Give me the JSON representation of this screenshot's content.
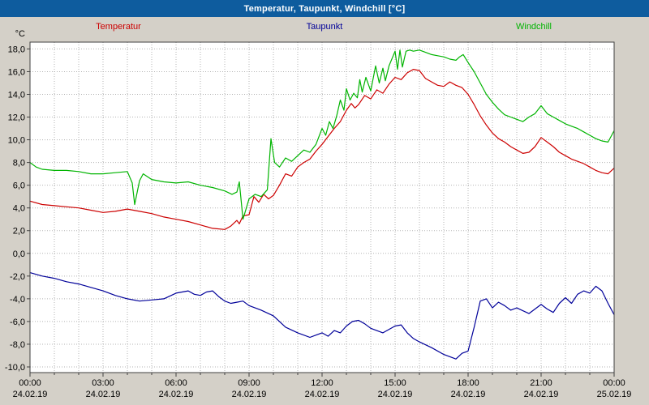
{
  "window": {
    "title": "Temperatur, Taupunkt, Windchill [°C]"
  },
  "colors": {
    "titlebar_bg": "#0e5c9e",
    "titlebar_text": "#ffffff",
    "page_bg": "#d4d0c8",
    "plot_bg": "#ffffff",
    "grid": "#b3b3b3",
    "axis_border": "#404040",
    "tick_text": "#000000",
    "temperatur": "#cc0000",
    "taupunkt": "#000099",
    "windchill": "#00b400"
  },
  "legend": [
    {
      "label": "Temperatur",
      "color": "#cc0000"
    },
    {
      "label": "Taupunkt",
      "color": "#000099"
    },
    {
      "label": "Windchill",
      "color": "#00b400"
    }
  ],
  "chart_data": {
    "type": "line",
    "title": "Temperatur, Taupunkt, Windchill [°C]",
    "xlabel": "",
    "ylabel": "°C",
    "ylim": [
      -10,
      18
    ],
    "grid": true,
    "legend_position": "top",
    "yticks": {
      "values": [
        18,
        16,
        14,
        12,
        10,
        8,
        6,
        4,
        2,
        0,
        -2,
        -4,
        -6,
        -8,
        -10
      ],
      "labels": [
        "18,0",
        "16,0",
        "14,0",
        "12,0",
        "10,0",
        "8,0",
        "6,0",
        "4,0",
        "2,0",
        "0,0",
        "-2,0",
        "-4,0",
        "-6,0",
        "-8,0",
        "-10,0"
      ]
    },
    "xticks": [
      {
        "time": "00:00",
        "date": "24.02.19",
        "hour": 0
      },
      {
        "time": "03:00",
        "date": "24.02.19",
        "hour": 3
      },
      {
        "time": "06:00",
        "date": "24.02.19",
        "hour": 6
      },
      {
        "time": "09:00",
        "date": "24.02.19",
        "hour": 9
      },
      {
        "time": "12:00",
        "date": "24.02.19",
        "hour": 12
      },
      {
        "time": "15:00",
        "date": "24.02.19",
        "hour": 15
      },
      {
        "time": "18:00",
        "date": "24.02.19",
        "hour": 18
      },
      {
        "time": "21:00",
        "date": "24.02.19",
        "hour": 21
      },
      {
        "time": "00:00",
        "date": "25.02.19",
        "hour": 24
      }
    ],
    "x_unit": "hours",
    "x_range": [
      0,
      24
    ],
    "series": [
      {
        "name": "Temperatur",
        "color": "#cc0000",
        "points": [
          [
            0,
            4.6
          ],
          [
            0.5,
            4.3
          ],
          [
            1,
            4.2
          ],
          [
            1.5,
            4.1
          ],
          [
            2,
            4.0
          ],
          [
            2.5,
            3.8
          ],
          [
            3,
            3.6
          ],
          [
            3.5,
            3.7
          ],
          [
            4,
            3.9
          ],
          [
            4.5,
            3.7
          ],
          [
            5,
            3.5
          ],
          [
            5.5,
            3.2
          ],
          [
            6,
            3.0
          ],
          [
            6.5,
            2.8
          ],
          [
            7,
            2.5
          ],
          [
            7.5,
            2.2
          ],
          [
            8,
            2.1
          ],
          [
            8.25,
            2.4
          ],
          [
            8.5,
            2.9
          ],
          [
            8.6,
            2.6
          ],
          [
            8.75,
            3.3
          ],
          [
            9,
            3.4
          ],
          [
            9.2,
            5.0
          ],
          [
            9.4,
            4.5
          ],
          [
            9.6,
            5.2
          ],
          [
            9.8,
            4.8
          ],
          [
            10,
            5.1
          ],
          [
            10.25,
            6.0
          ],
          [
            10.5,
            7.0
          ],
          [
            10.75,
            6.8
          ],
          [
            11,
            7.6
          ],
          [
            11.25,
            8.0
          ],
          [
            11.5,
            8.3
          ],
          [
            11.75,
            9.0
          ],
          [
            12,
            9.6
          ],
          [
            12.25,
            10.3
          ],
          [
            12.5,
            11.0
          ],
          [
            12.75,
            11.6
          ],
          [
            13,
            12.6
          ],
          [
            13.2,
            13.2
          ],
          [
            13.35,
            12.8
          ],
          [
            13.5,
            13.1
          ],
          [
            13.75,
            13.9
          ],
          [
            14,
            13.6
          ],
          [
            14.25,
            14.4
          ],
          [
            14.5,
            14.1
          ],
          [
            14.75,
            14.9
          ],
          [
            15,
            15.5
          ],
          [
            15.25,
            15.3
          ],
          [
            15.5,
            15.9
          ],
          [
            15.75,
            16.2
          ],
          [
            16,
            16.1
          ],
          [
            16.25,
            15.4
          ],
          [
            16.5,
            15.1
          ],
          [
            16.75,
            14.8
          ],
          [
            17,
            14.7
          ],
          [
            17.25,
            15.1
          ],
          [
            17.5,
            14.8
          ],
          [
            17.75,
            14.6
          ],
          [
            18,
            14.0
          ],
          [
            18.25,
            13.1
          ],
          [
            18.5,
            12.1
          ],
          [
            18.75,
            11.3
          ],
          [
            19,
            10.6
          ],
          [
            19.25,
            10.1
          ],
          [
            19.5,
            9.8
          ],
          [
            19.75,
            9.4
          ],
          [
            20,
            9.1
          ],
          [
            20.25,
            8.8
          ],
          [
            20.5,
            8.9
          ],
          [
            20.75,
            9.4
          ],
          [
            21,
            10.2
          ],
          [
            21.25,
            9.8
          ],
          [
            21.5,
            9.4
          ],
          [
            21.75,
            8.9
          ],
          [
            22,
            8.6
          ],
          [
            22.25,
            8.3
          ],
          [
            22.5,
            8.1
          ],
          [
            22.75,
            7.9
          ],
          [
            23,
            7.6
          ],
          [
            23.25,
            7.3
          ],
          [
            23.5,
            7.1
          ],
          [
            23.75,
            7.0
          ],
          [
            24,
            7.5
          ]
        ]
      },
      {
        "name": "Taupunkt",
        "color": "#000099",
        "points": [
          [
            0,
            -1.7
          ],
          [
            0.5,
            -2.0
          ],
          [
            1,
            -2.2
          ],
          [
            1.5,
            -2.5
          ],
          [
            2,
            -2.7
          ],
          [
            2.5,
            -3.0
          ],
          [
            3,
            -3.3
          ],
          [
            3.5,
            -3.7
          ],
          [
            4,
            -4.0
          ],
          [
            4.5,
            -4.2
          ],
          [
            5,
            -4.1
          ],
          [
            5.5,
            -4.0
          ],
          [
            6,
            -3.5
          ],
          [
            6.25,
            -3.4
          ],
          [
            6.5,
            -3.3
          ],
          [
            6.75,
            -3.6
          ],
          [
            7,
            -3.7
          ],
          [
            7.25,
            -3.4
          ],
          [
            7.5,
            -3.3
          ],
          [
            7.75,
            -3.8
          ],
          [
            8,
            -4.2
          ],
          [
            8.25,
            -4.4
          ],
          [
            8.5,
            -4.3
          ],
          [
            8.75,
            -4.2
          ],
          [
            9,
            -4.6
          ],
          [
            9.5,
            -5.0
          ],
          [
            10,
            -5.5
          ],
          [
            10.5,
            -6.5
          ],
          [
            11,
            -7.0
          ],
          [
            11.5,
            -7.4
          ],
          [
            11.75,
            -7.2
          ],
          [
            12,
            -7.0
          ],
          [
            12.25,
            -7.3
          ],
          [
            12.5,
            -6.8
          ],
          [
            12.75,
            -7.0
          ],
          [
            13,
            -6.4
          ],
          [
            13.25,
            -6.0
          ],
          [
            13.5,
            -5.9
          ],
          [
            13.75,
            -6.2
          ],
          [
            14,
            -6.6
          ],
          [
            14.5,
            -7.0
          ],
          [
            15,
            -6.4
          ],
          [
            15.25,
            -6.3
          ],
          [
            15.5,
            -7.0
          ],
          [
            15.75,
            -7.5
          ],
          [
            16,
            -7.8
          ],
          [
            16.5,
            -8.3
          ],
          [
            17,
            -8.9
          ],
          [
            17.5,
            -9.3
          ],
          [
            17.75,
            -8.8
          ],
          [
            18,
            -8.6
          ],
          [
            18.25,
            -6.5
          ],
          [
            18.5,
            -4.2
          ],
          [
            18.75,
            -4.0
          ],
          [
            19,
            -4.8
          ],
          [
            19.25,
            -4.3
          ],
          [
            19.5,
            -4.6
          ],
          [
            19.75,
            -5.0
          ],
          [
            20,
            -4.8
          ],
          [
            20.5,
            -5.3
          ],
          [
            20.75,
            -4.9
          ],
          [
            21,
            -4.5
          ],
          [
            21.25,
            -4.9
          ],
          [
            21.5,
            -5.2
          ],
          [
            21.75,
            -4.4
          ],
          [
            22,
            -3.9
          ],
          [
            22.25,
            -4.4
          ],
          [
            22.5,
            -3.6
          ],
          [
            22.75,
            -3.3
          ],
          [
            23,
            -3.5
          ],
          [
            23.25,
            -2.9
          ],
          [
            23.5,
            -3.3
          ],
          [
            23.75,
            -4.4
          ],
          [
            24,
            -5.4
          ]
        ]
      },
      {
        "name": "Windchill",
        "color": "#00b400",
        "points": [
          [
            0,
            8.0
          ],
          [
            0.25,
            7.6
          ],
          [
            0.5,
            7.4
          ],
          [
            1,
            7.3
          ],
          [
            1.5,
            7.3
          ],
          [
            2,
            7.2
          ],
          [
            2.5,
            7.0
          ],
          [
            3,
            7.0
          ],
          [
            3.5,
            7.1
          ],
          [
            4,
            7.2
          ],
          [
            4.2,
            6.2
          ],
          [
            4.3,
            4.3
          ],
          [
            4.5,
            6.4
          ],
          [
            4.65,
            7.0
          ],
          [
            5,
            6.5
          ],
          [
            5.5,
            6.3
          ],
          [
            6,
            6.2
          ],
          [
            6.5,
            6.3
          ],
          [
            7,
            6.0
          ],
          [
            7.5,
            5.8
          ],
          [
            8,
            5.5
          ],
          [
            8.3,
            5.2
          ],
          [
            8.5,
            5.4
          ],
          [
            8.6,
            6.3
          ],
          [
            8.75,
            3.0
          ],
          [
            9,
            4.8
          ],
          [
            9.25,
            5.2
          ],
          [
            9.5,
            5.0
          ],
          [
            9.75,
            5.6
          ],
          [
            9.9,
            10.1
          ],
          [
            10.05,
            8.0
          ],
          [
            10.25,
            7.6
          ],
          [
            10.5,
            8.4
          ],
          [
            10.75,
            8.1
          ],
          [
            11,
            8.6
          ],
          [
            11.25,
            9.1
          ],
          [
            11.5,
            8.9
          ],
          [
            11.75,
            9.6
          ],
          [
            12,
            11.0
          ],
          [
            12.15,
            10.4
          ],
          [
            12.3,
            11.6
          ],
          [
            12.45,
            11.0
          ],
          [
            12.6,
            12.1
          ],
          [
            12.75,
            13.5
          ],
          [
            12.9,
            12.6
          ],
          [
            13,
            14.5
          ],
          [
            13.15,
            13.5
          ],
          [
            13.3,
            14.1
          ],
          [
            13.45,
            13.7
          ],
          [
            13.55,
            15.3
          ],
          [
            13.65,
            14.2
          ],
          [
            13.8,
            15.5
          ],
          [
            14,
            14.3
          ],
          [
            14.2,
            16.5
          ],
          [
            14.35,
            15.0
          ],
          [
            14.5,
            16.3
          ],
          [
            14.6,
            15.2
          ],
          [
            14.75,
            16.5
          ],
          [
            15,
            17.8
          ],
          [
            15.1,
            16.2
          ],
          [
            15.2,
            17.9
          ],
          [
            15.3,
            16.4
          ],
          [
            15.45,
            17.8
          ],
          [
            15.6,
            17.9
          ],
          [
            15.75,
            17.8
          ],
          [
            16,
            17.9
          ],
          [
            16.25,
            17.7
          ],
          [
            16.5,
            17.5
          ],
          [
            16.75,
            17.4
          ],
          [
            17,
            17.3
          ],
          [
            17.25,
            17.1
          ],
          [
            17.5,
            17.0
          ],
          [
            17.65,
            17.3
          ],
          [
            17.8,
            17.5
          ],
          [
            18,
            16.8
          ],
          [
            18.25,
            16.0
          ],
          [
            18.5,
            15.0
          ],
          [
            18.75,
            14.0
          ],
          [
            19,
            13.3
          ],
          [
            19.25,
            12.7
          ],
          [
            19.5,
            12.2
          ],
          [
            19.75,
            12.0
          ],
          [
            20,
            11.8
          ],
          [
            20.25,
            11.6
          ],
          [
            20.5,
            12.0
          ],
          [
            20.75,
            12.3
          ],
          [
            21,
            13.0
          ],
          [
            21.25,
            12.3
          ],
          [
            21.5,
            12.0
          ],
          [
            21.75,
            11.7
          ],
          [
            22,
            11.4
          ],
          [
            22.25,
            11.2
          ],
          [
            22.5,
            11.0
          ],
          [
            22.75,
            10.7
          ],
          [
            23,
            10.4
          ],
          [
            23.25,
            10.1
          ],
          [
            23.5,
            9.9
          ],
          [
            23.75,
            9.8
          ],
          [
            24,
            10.8
          ]
        ]
      }
    ]
  }
}
